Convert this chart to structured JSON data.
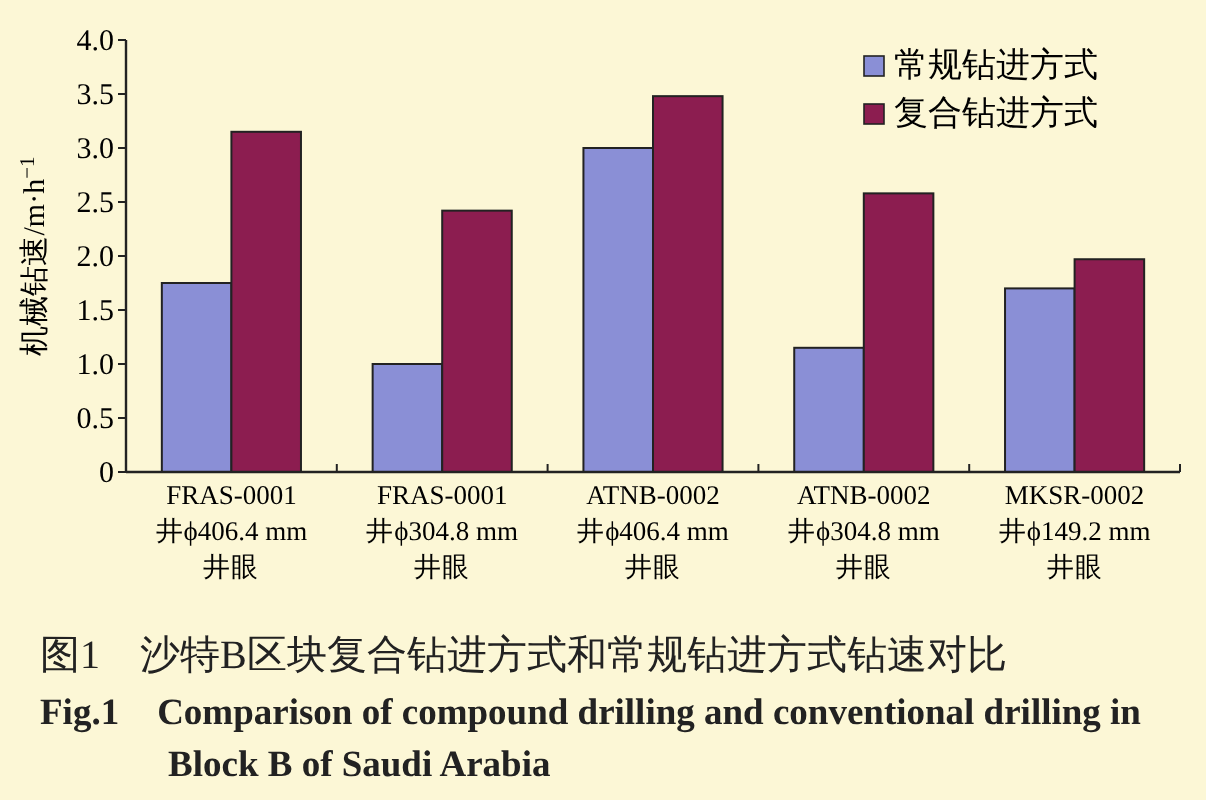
{
  "chart_data": {
    "type": "bar",
    "title": "图1　沙特B区块复合钻进方式和常规钻进方式钻速对比",
    "subtitle": "Fig.1　Comparison of compound drilling and conventional drilling in Block B of Saudi Arabia",
    "ylabel": "机械钻速/m·h$^{−1}$",
    "categories": [
      "FRAS-0001\n井ϕ406.4 mm\n井眼",
      "FRAS-0001\n井ϕ304.8 mm\n井眼",
      "ATNB-0002\n井ϕ406.4 mm\n井眼",
      "ATNB-0002\n井ϕ304.8 mm\n井眼",
      "MKSR-0002\n井ϕ149.2 mm\n井眼"
    ],
    "series": [
      {
        "name": "常规钻进方式",
        "color": "#8a8fd6",
        "values": [
          1.75,
          1.0,
          3.0,
          1.15,
          1.7
        ]
      },
      {
        "name": "复合钻进方式",
        "color": "#8c1d50",
        "values": [
          3.15,
          2.42,
          3.48,
          2.58,
          1.97
        ]
      }
    ],
    "ylim": [
      0,
      4.0
    ],
    "yticks": [
      0,
      {
        "value": 0.5,
        "label": "0.5"
      },
      {
        "value": 1.0,
        "label": "1.0"
      },
      {
        "value": 1.5,
        "label": "1.5"
      },
      {
        "value": 2.0,
        "label": "2.0"
      },
      {
        "value": 2.5,
        "label": "2.5"
      },
      {
        "value": 3.0,
        "label": "3.0"
      },
      {
        "value": 3.5,
        "label": "3.5"
      },
      {
        "value": 4.0,
        "label": "4.0"
      }
    ],
    "legend": "top right",
    "grid": false
  }
}
